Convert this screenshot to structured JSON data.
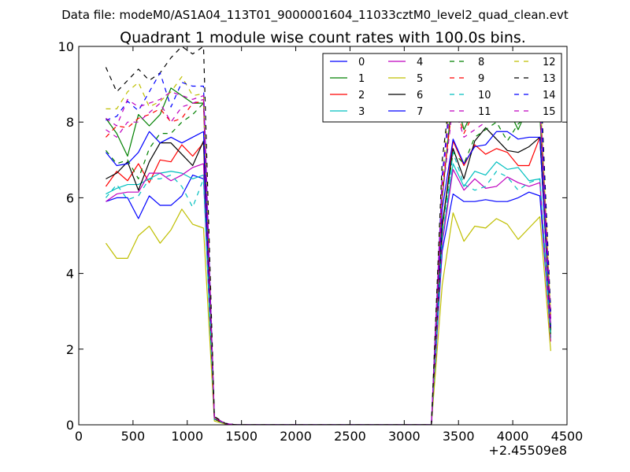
{
  "chart_data": {
    "type": "line",
    "suptitle": "Data file: modeM0/AS1A04_113T01_9000001604_11033cztM0_level2_quad_clean.evt",
    "title": "Quadrant 1 module wise count rates with 100.0s bins.",
    "xlabel": "",
    "ylabel": "",
    "x_offset_label": "+2.45509e8",
    "xlim": [
      0,
      4500
    ],
    "ylim": [
      0,
      10
    ],
    "x_ticks": [
      0,
      500,
      1000,
      1500,
      2000,
      2500,
      3000,
      3500,
      4000,
      4500
    ],
    "y_ticks": [
      0,
      2,
      4,
      6,
      8,
      10
    ],
    "legend_position": "top-right",
    "x": [
      250,
      350,
      450,
      550,
      650,
      750,
      850,
      950,
      1050,
      1150,
      1250,
      1350,
      1450,
      1550,
      1650,
      1750,
      1850,
      1950,
      2050,
      2150,
      2250,
      2350,
      2450,
      2550,
      2650,
      2750,
      2850,
      2950,
      3050,
      3150,
      3250,
      3350,
      3450,
      3550,
      3650,
      3750,
      3850,
      3950,
      4050,
      4150,
      4250,
      4350
    ],
    "series": [
      {
        "name": "0",
        "color": "#0000ff",
        "dash": "solid",
        "values": [
          5.9,
          6.0,
          6.0,
          5.45,
          6.05,
          5.8,
          5.8,
          6.05,
          6.6,
          6.5,
          0.15,
          0.03,
          0,
          0,
          0,
          0,
          0,
          0,
          0,
          0,
          0,
          0,
          0,
          0,
          0,
          0,
          0,
          0,
          0,
          0,
          0,
          4.6,
          6.1,
          5.9,
          5.9,
          5.95,
          5.9,
          5.9,
          6.0,
          6.15,
          6.05,
          2.3
        ]
      },
      {
        "name": "1",
        "color": "#008000",
        "dash": "solid",
        "values": [
          8.1,
          7.7,
          7.1,
          8.2,
          7.9,
          8.2,
          8.9,
          8.7,
          8.5,
          8.5,
          0.2,
          0.03,
          0,
          0,
          0,
          0,
          0,
          0,
          0,
          0,
          0,
          0,
          0,
          0,
          0,
          0,
          0,
          0,
          0,
          0,
          0,
          6.0,
          8.9,
          7.8,
          8.4,
          8.3,
          8.4,
          8.4,
          7.8,
          8.45,
          8.2,
          2.6
        ]
      },
      {
        "name": "2",
        "color": "#ff0000",
        "dash": "solid",
        "values": [
          6.3,
          6.7,
          6.45,
          6.9,
          6.4,
          7.0,
          6.95,
          7.4,
          7.1,
          7.45,
          0.15,
          0.03,
          0,
          0,
          0,
          0,
          0,
          0,
          0,
          0,
          0,
          0,
          0,
          0,
          0,
          0,
          0,
          0,
          0,
          0,
          0,
          5.2,
          7.5,
          6.85,
          7.4,
          7.15,
          7.3,
          7.2,
          6.85,
          6.85,
          7.6,
          2.5
        ]
      },
      {
        "name": "3",
        "color": "#00bfbf",
        "dash": "solid",
        "values": [
          6.1,
          6.25,
          6.35,
          6.35,
          6.5,
          6.65,
          6.7,
          6.65,
          6.5,
          6.6,
          0.15,
          0.03,
          0,
          0,
          0,
          0,
          0,
          0,
          0,
          0,
          0,
          0,
          0,
          0,
          0,
          0,
          0,
          0,
          0,
          0,
          0,
          4.9,
          6.9,
          6.3,
          6.7,
          6.6,
          6.95,
          6.75,
          6.8,
          6.45,
          6.5,
          2.3
        ]
      },
      {
        "name": "4",
        "color": "#bf00bf",
        "dash": "solid",
        "values": [
          5.9,
          6.1,
          6.15,
          6.15,
          6.65,
          6.65,
          6.45,
          6.6,
          6.8,
          6.9,
          0.15,
          0.03,
          0,
          0,
          0,
          0,
          0,
          0,
          0,
          0,
          0,
          0,
          0,
          0,
          0,
          0,
          0,
          0,
          0,
          0,
          0,
          4.8,
          6.75,
          6.2,
          6.5,
          6.25,
          6.3,
          6.55,
          6.4,
          6.3,
          6.4,
          2.2
        ]
      },
      {
        "name": "5",
        "color": "#bfbf00",
        "dash": "solid",
        "values": [
          4.8,
          4.4,
          4.4,
          5.0,
          5.25,
          4.8,
          5.15,
          5.7,
          5.3,
          5.2,
          0.1,
          0.02,
          0,
          0,
          0,
          0,
          0,
          0,
          0,
          0,
          0,
          0,
          0,
          0,
          0,
          0,
          0,
          0,
          0,
          0,
          0,
          3.7,
          5.6,
          4.85,
          5.25,
          5.2,
          5.45,
          5.3,
          4.9,
          5.2,
          5.5,
          1.95
        ]
      },
      {
        "name": "6",
        "color": "#000000",
        "dash": "solid",
        "values": [
          6.5,
          6.65,
          6.95,
          6.2,
          6.95,
          7.45,
          7.45,
          7.15,
          6.85,
          7.5,
          0.15,
          0.03,
          0,
          0,
          0,
          0,
          0,
          0,
          0,
          0,
          0,
          0,
          0,
          0,
          0,
          0,
          0,
          0,
          0,
          0,
          0,
          5.3,
          7.3,
          6.5,
          7.5,
          7.85,
          7.55,
          7.25,
          7.2,
          7.35,
          7.6,
          2.5
        ]
      },
      {
        "name": "7",
        "color": "#0000ff",
        "dash": "solid",
        "values": [
          7.2,
          6.85,
          6.9,
          7.2,
          7.75,
          7.45,
          7.6,
          7.45,
          7.6,
          7.75,
          0.18,
          0.03,
          0,
          0,
          0,
          0,
          0,
          0,
          0,
          0,
          0,
          0,
          0,
          0,
          0,
          0,
          0,
          0,
          0,
          0,
          0,
          5.7,
          7.55,
          6.9,
          7.35,
          7.4,
          7.75,
          7.75,
          7.55,
          7.6,
          7.6,
          2.6
        ]
      },
      {
        "name": "8",
        "color": "#008000",
        "dash": "dashed",
        "values": [
          7.25,
          6.9,
          7.0,
          6.5,
          7.3,
          7.7,
          7.7,
          8.0,
          8.2,
          8.5,
          0.15,
          0.03,
          0,
          0,
          0,
          0,
          0,
          0,
          0,
          0,
          0,
          0,
          0,
          0,
          0,
          0,
          0,
          0,
          0,
          0,
          0,
          5.2,
          7.2,
          6.9,
          7.6,
          7.8,
          8.0,
          7.5,
          7.95,
          8.2,
          8.3,
          2.4
        ]
      },
      {
        "name": "9",
        "color": "#ff0000",
        "dash": "dashed",
        "values": [
          7.6,
          7.9,
          7.85,
          8.1,
          8.2,
          8.35,
          8.0,
          8.1,
          8.5,
          8.55,
          0.18,
          0.03,
          0,
          0,
          0,
          0,
          0,
          0,
          0,
          0,
          0,
          0,
          0,
          0,
          0,
          0,
          0,
          0,
          0,
          0,
          0,
          6.2,
          8.6,
          7.7,
          8.3,
          8.5,
          8.75,
          8.6,
          8.25,
          8.5,
          8.55,
          2.7
        ]
      },
      {
        "name": "10",
        "color": "#00bfbf",
        "dash": "dashed",
        "values": [
          6.0,
          6.35,
          5.95,
          6.05,
          6.5,
          6.5,
          6.6,
          6.3,
          5.75,
          6.5,
          0.15,
          0.03,
          0,
          0,
          0,
          0,
          0,
          0,
          0,
          0,
          0,
          0,
          0,
          0,
          0,
          0,
          0,
          0,
          0,
          0,
          0,
          4.9,
          7.2,
          6.35,
          6.2,
          6.3,
          6.7,
          6.55,
          6.2,
          6.4,
          6.5,
          2.3
        ]
      },
      {
        "name": "11",
        "color": "#bf00bf",
        "dash": "dashed",
        "values": [
          7.8,
          7.6,
          8.0,
          8.0,
          8.25,
          8.5,
          8.0,
          8.4,
          8.5,
          8.6,
          0.18,
          0.03,
          0,
          0,
          0,
          0,
          0,
          0,
          0,
          0,
          0,
          0,
          0,
          0,
          0,
          0,
          0,
          0,
          0,
          0,
          0,
          6.0,
          8.5,
          7.6,
          7.8,
          8.0,
          8.1,
          8.4,
          8.0,
          8.15,
          8.4,
          2.6
        ]
      },
      {
        "name": "12",
        "color": "#bfbf00",
        "dash": "dashed",
        "values": [
          8.35,
          8.35,
          8.8,
          9.05,
          8.4,
          8.55,
          8.8,
          9.2,
          8.7,
          8.75,
          0.2,
          0.03,
          0,
          0,
          0,
          0,
          0,
          0,
          0,
          0,
          0,
          0,
          0,
          0,
          0,
          0,
          0,
          0,
          0,
          0,
          0,
          6.5,
          9.6,
          8.5,
          8.9,
          9.2,
          9.1,
          9.1,
          8.5,
          8.9,
          8.9,
          2.9
        ]
      },
      {
        "name": "13",
        "color": "#000000",
        "dash": "dashed",
        "values": [
          9.45,
          8.8,
          9.1,
          9.4,
          9.1,
          9.3,
          9.7,
          10.0,
          9.8,
          10.0,
          0.22,
          0.04,
          0,
          0,
          0,
          0,
          0,
          0,
          0,
          0,
          0,
          0,
          0,
          0,
          0,
          0,
          0,
          0,
          0,
          0,
          0,
          7.0,
          9.4,
          9.0,
          9.4,
          9.6,
          9.6,
          9.4,
          9.2,
          9.6,
          9.5,
          3.0
        ]
      },
      {
        "name": "14",
        "color": "#0000ff",
        "dash": "dashed",
        "values": [
          8.05,
          8.15,
          8.55,
          8.3,
          8.8,
          9.3,
          8.4,
          9.05,
          8.95,
          8.95,
          0.2,
          0.03,
          0,
          0,
          0,
          0,
          0,
          0,
          0,
          0,
          0,
          0,
          0,
          0,
          0,
          0,
          0,
          0,
          0,
          0,
          0,
          6.6,
          9.3,
          8.5,
          9.0,
          9.1,
          8.9,
          9.1,
          8.8,
          9.0,
          9.1,
          2.8
        ]
      },
      {
        "name": "15",
        "color": "#bf00bf",
        "dash": "dashed",
        "values": [
          8.1,
          7.9,
          8.6,
          8.4,
          8.5,
          8.6,
          8.8,
          8.7,
          8.6,
          8.7,
          0.2,
          0.03,
          0,
          0,
          0,
          0,
          0,
          0,
          0,
          0,
          0,
          0,
          0,
          0,
          0,
          0,
          0,
          0,
          0,
          0,
          0,
          6.4,
          9.1,
          8.3,
          8.7,
          8.9,
          8.7,
          8.8,
          8.5,
          8.8,
          8.6,
          2.8
        ]
      }
    ]
  }
}
